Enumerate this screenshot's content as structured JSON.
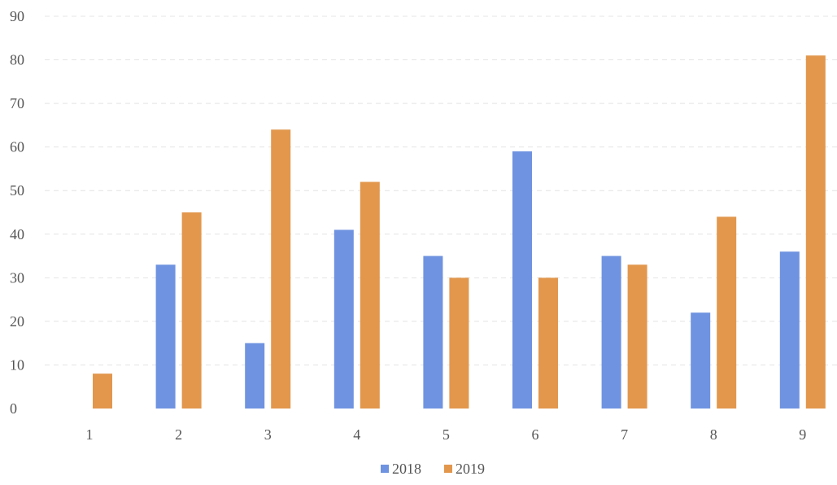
{
  "chart_data": {
    "type": "bar",
    "categories": [
      "1",
      "2",
      "3",
      "4",
      "5",
      "6",
      "7",
      "8",
      "9"
    ],
    "series": [
      {
        "name": "2018",
        "color": "#6f93e0",
        "values": [
          0,
          33,
          15,
          41,
          35,
          59,
          35,
          22,
          36
        ]
      },
      {
        "name": "2019",
        "color": "#e2974d",
        "values": [
          8,
          45,
          64,
          52,
          30,
          30,
          33,
          44,
          81
        ]
      }
    ],
    "ylim": [
      0,
      90
    ],
    "yticks": [
      "0",
      "10",
      "20",
      "30",
      "40",
      "50",
      "60",
      "70",
      "80",
      "90"
    ],
    "grid": true,
    "legend_position": "bottom-center"
  }
}
